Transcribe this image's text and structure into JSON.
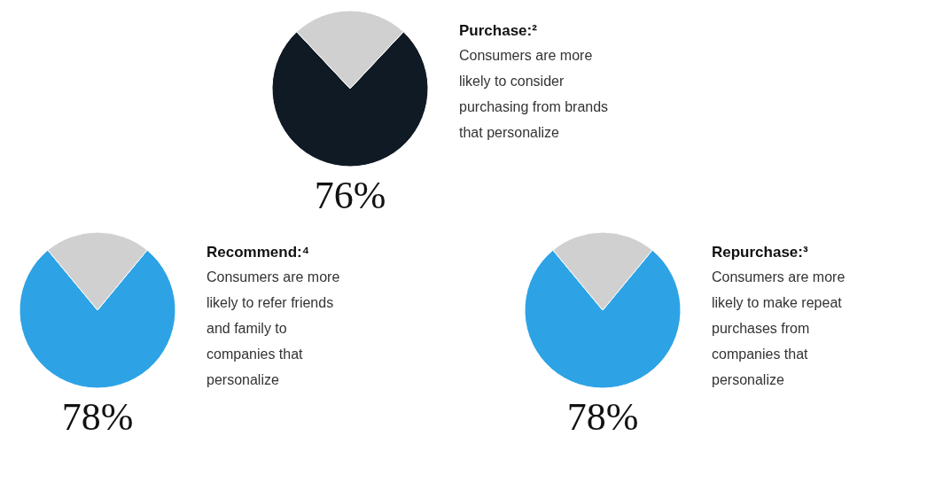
{
  "chart_data": [
    {
      "type": "pie",
      "title": "Purchase:²",
      "subtitle": "Consumers are more\nlikely to consider\npurchasing from brands\nthat personalize",
      "categories": [
        null,
        null
      ],
      "values": [
        76,
        24
      ],
      "colors": [
        "#0f1a24",
        "#d0d0d0"
      ],
      "value_labels": [
        "76%",
        null
      ]
    },
    {
      "type": "pie",
      "title": "Recommend:⁴",
      "subtitle": "Consumers are more\nlikely to refer friends\nand family to\ncompanies that\npersonalize",
      "categories": [
        null,
        null
      ],
      "values": [
        78,
        22
      ],
      "colors": [
        "#2da3e6",
        "#d0d0d0"
      ],
      "value_labels": [
        "78%",
        null
      ]
    },
    {
      "type": "pie",
      "title": "Repurchase:³",
      "subtitle": "Consumers are more\nlikely to make repeat\npurchases from\ncompanies that\npersonalize",
      "categories": [
        null,
        null
      ],
      "values": [
        78,
        22
      ],
      "colors": [
        "#2da3e6",
        "#d0d0d0"
      ],
      "value_labels": [
        "78%",
        null
      ]
    }
  ]
}
